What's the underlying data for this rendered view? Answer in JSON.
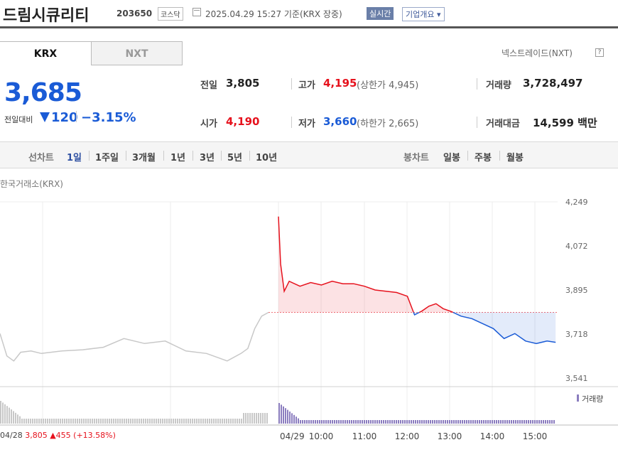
{
  "header": {
    "stock_name": "드림시큐리티",
    "stock_code": "203650",
    "market_badge": "코스닥",
    "datetime_text": "2025.04.29 15:27  기준(KRX 장중)",
    "realtime_badge": "실시간",
    "company_info_button": "기업개요 ▾"
  },
  "tabs": [
    {
      "label": "KRX",
      "selected": true
    },
    {
      "label": "NXT",
      "selected": false
    }
  ],
  "nxt_link": "넥스트레이드(NXT)",
  "nxt_help": "?",
  "quote": {
    "price": "3,685",
    "change_label": "전일대비",
    "change_value": "120",
    "change_pct": "−3.15%",
    "prev_close_label": "전일",
    "prev_close": "3,805",
    "open_label": "시가",
    "open": "4,190",
    "high_label": "고가",
    "high": "4,195",
    "upper_limit_text": "(상한가 4,945)",
    "low_label": "저가",
    "low": "3,660",
    "lower_limit_text": "(하한가 2,665)",
    "volume_label": "거래량",
    "volume": "3,728,497",
    "trade_value_label": "거래대금",
    "trade_value": "14,599 백만"
  },
  "line_chart_tabs": {
    "label": "선차트",
    "items": [
      "1일",
      "1주일",
      "3개월",
      "1년",
      "3년",
      "5년",
      "10년"
    ],
    "selected": "1일"
  },
  "candle_chart_tabs": {
    "label": "봉차트",
    "items": [
      "일봉",
      "주봉",
      "월봉"
    ]
  },
  "colors": {
    "up": "#e6121d",
    "down": "#1a5bd6",
    "prev_day_line": "#c8c8c8",
    "volume_today": "#8b7dbf",
    "volume_prev": "#c8c8c8"
  },
  "chart_data": {
    "type": "line",
    "exchange_label": "한국거래소(KRX)",
    "y_ticks": [
      "4,249",
      "4,072",
      "3,895",
      "3,718",
      "3,541"
    ],
    "ylim": [
      3541,
      4249
    ],
    "reference_price": 3805,
    "x_ticks": [
      "04/28",
      "04/29",
      "10:00",
      "11:00",
      "12:00",
      "13:00",
      "14:00",
      "15:00"
    ],
    "volume_legend": "거래량",
    "prev_day_summary": {
      "date": "04/28",
      "close": "3,805",
      "change": "▲455",
      "change_pct": "(+13.58%)"
    },
    "series": [
      {
        "segment": "previous day (04/28)",
        "x": [
          "09:00",
          "09:10",
          "09:20",
          "09:30",
          "09:45",
          "10:00",
          "10:30",
          "11:00",
          "11:30",
          "12:00",
          "12:30",
          "13:00",
          "13:30",
          "14:00",
          "14:30",
          "14:50",
          "15:00",
          "15:10",
          "15:20",
          "15:30"
        ],
        "values": [
          3720,
          3630,
          3610,
          3645,
          3650,
          3640,
          3650,
          3655,
          3665,
          3700,
          3680,
          3690,
          3650,
          3640,
          3610,
          3640,
          3660,
          3740,
          3790,
          3805
        ]
      },
      {
        "segment": "today (04/29)",
        "x": [
          "09:00",
          "09:03",
          "09:08",
          "09:15",
          "09:30",
          "09:45",
          "10:00",
          "10:15",
          "10:30",
          "10:45",
          "11:00",
          "11:15",
          "11:30",
          "11:45",
          "12:00",
          "12:10",
          "12:20",
          "12:30",
          "12:40",
          "12:50",
          "13:00",
          "13:15",
          "13:30",
          "13:45",
          "14:00",
          "14:15",
          "14:30",
          "14:45",
          "15:00",
          "15:15",
          "15:27"
        ],
        "values": [
          4190,
          4000,
          3890,
          3930,
          3910,
          3925,
          3915,
          3930,
          3920,
          3920,
          3910,
          3895,
          3890,
          3885,
          3870,
          3795,
          3810,
          3830,
          3840,
          3820,
          3810,
          3790,
          3780,
          3760,
          3740,
          3700,
          3720,
          3690,
          3680,
          3690,
          3685
        ]
      }
    ]
  }
}
